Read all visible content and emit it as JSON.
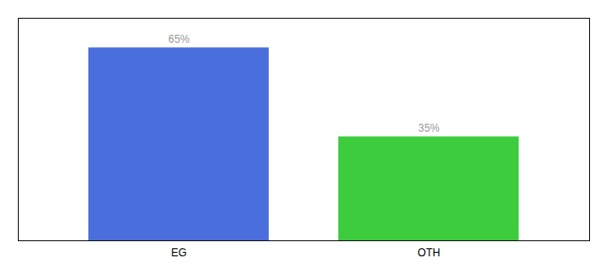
{
  "chart_data": {
    "type": "bar",
    "categories": [
      "EG",
      "OTH"
    ],
    "values": [
      65,
      35
    ],
    "value_labels": [
      "65%",
      "35%"
    ],
    "colors": [
      "#4a6edb",
      "#3dcc3d"
    ],
    "ylim": [
      0,
      75
    ],
    "data_labels": true,
    "tick_labels": "x"
  }
}
